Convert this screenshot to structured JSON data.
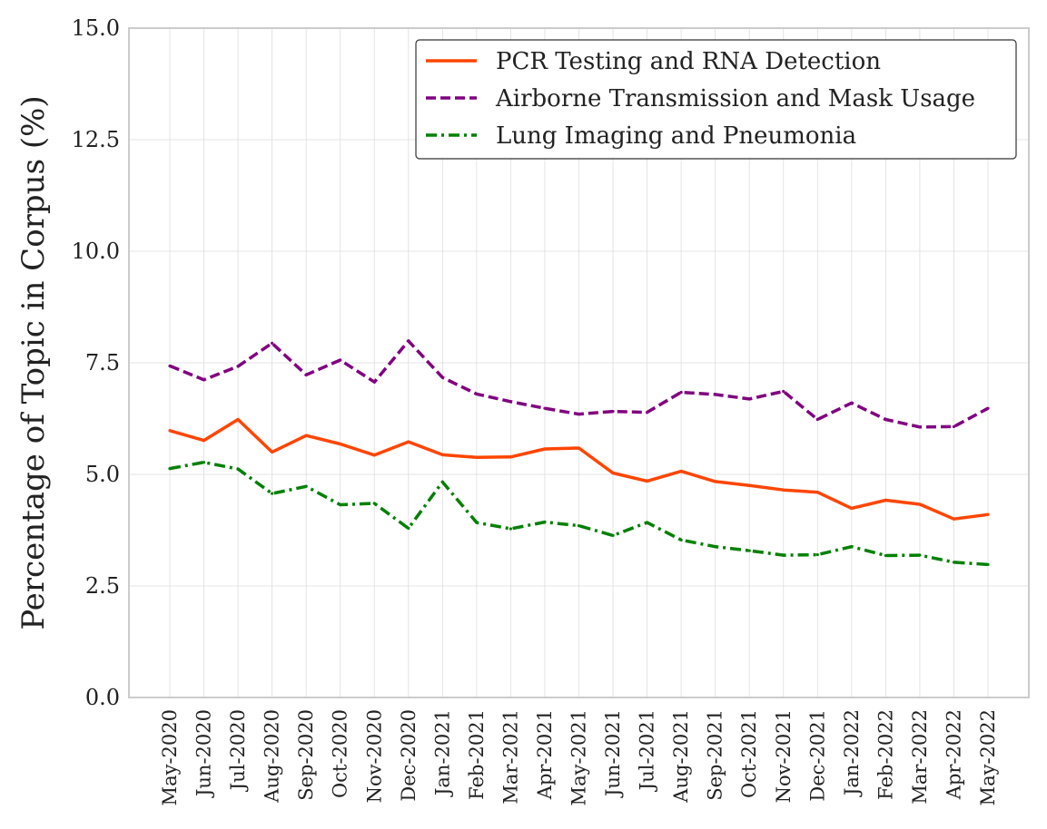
{
  "chart_data": {
    "type": "line",
    "title": "",
    "xlabel": "",
    "ylabel": "Percentage of Topic in Corpus (%)",
    "ylim": [
      0,
      15
    ],
    "yticks": [
      "0.0",
      "2.5",
      "5.0",
      "7.5",
      "10.0",
      "12.5",
      "15.0"
    ],
    "grid": true,
    "legend_position": "top-right",
    "categories": [
      "May-2020",
      "Jun-2020",
      "Jul-2020",
      "Aug-2020",
      "Sep-2020",
      "Oct-2020",
      "Nov-2020",
      "Dec-2020",
      "Jan-2021",
      "Feb-2021",
      "Mar-2021",
      "Apr-2021",
      "May-2021",
      "Jun-2021",
      "Jul-2021",
      "Aug-2021",
      "Sep-2021",
      "Oct-2021",
      "Nov-2021",
      "Dec-2021",
      "Jan-2022",
      "Feb-2022",
      "Mar-2022",
      "Apr-2022",
      "May-2022"
    ],
    "series": [
      {
        "name": "PCR Testing and RNA Detection",
        "color": "#ff4500",
        "dash": "solid",
        "values": [
          5.98,
          5.76,
          6.23,
          5.5,
          5.87,
          5.68,
          5.43,
          5.73,
          5.44,
          5.38,
          5.39,
          5.57,
          5.59,
          5.03,
          4.85,
          5.07,
          4.84,
          4.75,
          4.65,
          4.6,
          4.24,
          4.42,
          4.33,
          4.0,
          4.1
        ]
      },
      {
        "name": "Airborne Transmission and Mask Usage",
        "color": "#800080",
        "dash": "dashed",
        "values": [
          7.43,
          7.12,
          7.42,
          7.94,
          7.23,
          7.56,
          7.07,
          7.99,
          7.17,
          6.8,
          6.63,
          6.48,
          6.35,
          6.41,
          6.39,
          6.84,
          6.79,
          6.69,
          6.86,
          6.23,
          6.6,
          6.23,
          6.06,
          6.07,
          6.48
        ]
      },
      {
        "name": "Lung Imaging and Pneumonia",
        "color": "#008000",
        "dash": "dashdot",
        "values": [
          5.13,
          5.27,
          5.12,
          4.57,
          4.73,
          4.32,
          4.35,
          3.79,
          4.83,
          3.92,
          3.78,
          3.93,
          3.85,
          3.63,
          3.92,
          3.53,
          3.38,
          3.29,
          3.19,
          3.2,
          3.38,
          3.18,
          3.19,
          3.03,
          2.98
        ]
      }
    ]
  }
}
